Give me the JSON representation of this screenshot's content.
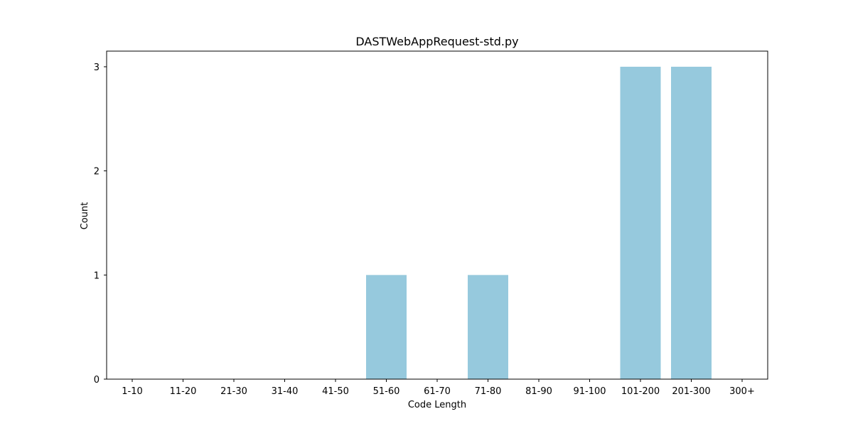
{
  "chart_data": {
    "type": "bar",
    "title": "DASTWebAppRequest-std.py",
    "xlabel": "Code Length",
    "ylabel": "Count",
    "categories": [
      "1-10",
      "11-20",
      "21-30",
      "31-40",
      "41-50",
      "51-60",
      "61-70",
      "71-80",
      "81-90",
      "91-100",
      "101-200",
      "201-300",
      "300+"
    ],
    "values": [
      0,
      0,
      0,
      0,
      0,
      1,
      0,
      1,
      0,
      0,
      3,
      3,
      0
    ],
    "ylim": [
      0,
      3.15
    ],
    "yticks": [
      0,
      1,
      2,
      3
    ],
    "grid": false,
    "bar_color": "#96c9dd"
  }
}
